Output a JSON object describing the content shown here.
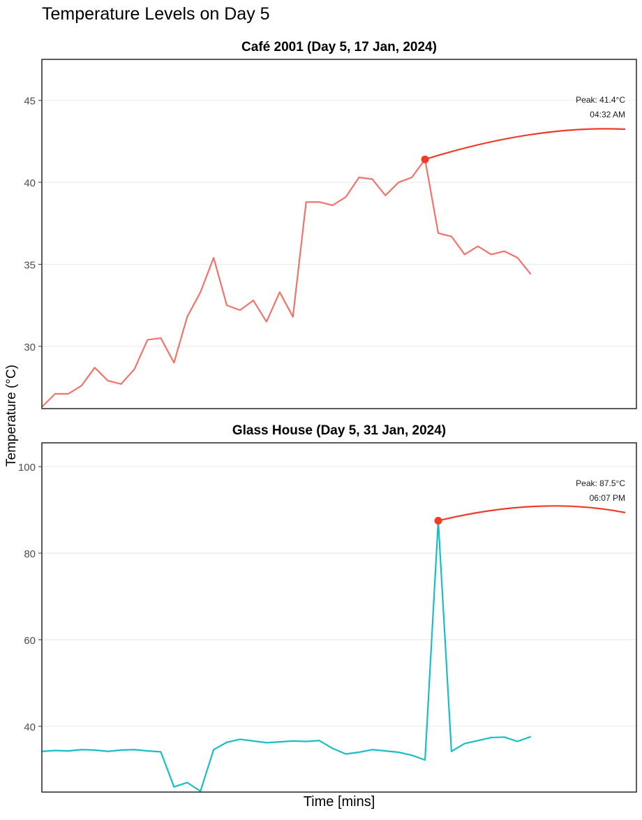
{
  "title": "Temperature Levels on Day 5",
  "ylabel": "Temperature (°C)",
  "xlabel": "Time [mins]",
  "chart_data": [
    {
      "type": "line",
      "title": "Café 2001 (Day 5, 17 Jan, 2024)",
      "color": "#f2736b",
      "ylim": [
        26.2,
        47.5
      ],
      "xlim": [
        0,
        45
      ],
      "yticks": [
        30,
        35,
        40,
        45
      ],
      "grid": true,
      "values": [
        26.3,
        27.1,
        27.1,
        27.6,
        28.7,
        27.9,
        27.7,
        28.6,
        30.4,
        30.5,
        29.0,
        31.8,
        33.3,
        35.4,
        32.5,
        32.2,
        32.8,
        31.5,
        33.3,
        31.8,
        38.8,
        38.8,
        38.6,
        39.1,
        40.3,
        40.2,
        39.2,
        40.0,
        40.3,
        41.4,
        36.9,
        36.7,
        35.6,
        36.1,
        35.6,
        35.8,
        35.4,
        34.4
      ],
      "peak": {
        "index": 29,
        "value": 41.4,
        "label": "Peak: 41.4°C",
        "time": "04:32 AM"
      }
    },
    {
      "type": "line",
      "title": "Glass House (Day 5, 31 Jan, 2024)",
      "color": "#19bec5",
      "ylim": [
        24.8,
        105.5
      ],
      "xlim": [
        0,
        45
      ],
      "yticks": [
        40,
        60,
        80,
        100
      ],
      "grid": true,
      "values": [
        34.2,
        34.4,
        34.3,
        34.6,
        34.5,
        34.2,
        34.5,
        34.6,
        34.3,
        34.1,
        26.0,
        27.0,
        25.0,
        34.6,
        36.3,
        37.0,
        36.6,
        36.2,
        36.4,
        36.6,
        36.5,
        36.7,
        34.9,
        33.6,
        34.0,
        34.6,
        34.3,
        34.0,
        33.3,
        32.2,
        87.5,
        34.2,
        36.0,
        36.7,
        37.4,
        37.5,
        36.5,
        37.6
      ],
      "peak": {
        "index": 30,
        "value": 87.5,
        "label": "Peak: 87.5°C",
        "time": "06:07 PM"
      }
    }
  ]
}
